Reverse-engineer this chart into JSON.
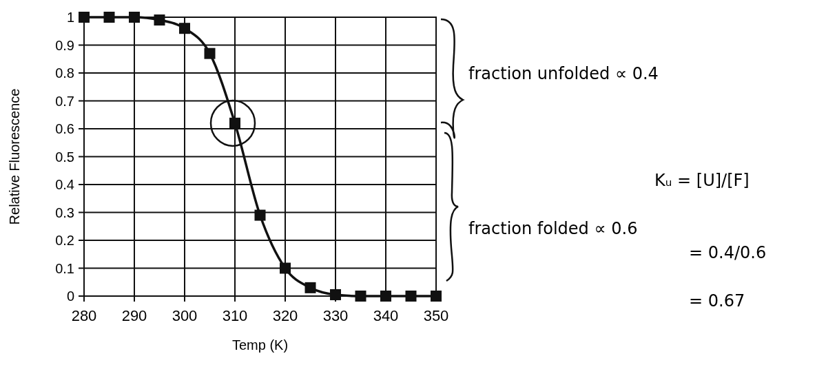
{
  "chart_data": {
    "type": "line",
    "xlabel": "Temp (K)",
    "ylabel": "Relative Fluorescence",
    "x": [
      280,
      285,
      290,
      295,
      300,
      305,
      310,
      315,
      320,
      325,
      330,
      335,
      340,
      345,
      350
    ],
    "series": [
      {
        "color": "#111111",
        "values": [
          1,
          1,
          1,
          0.99,
          0.96,
          0.87,
          0.62,
          0.29,
          0.1,
          0.03,
          0.005,
          0,
          0,
          0,
          0
        ]
      }
    ],
    "xlim": [
      280,
      350
    ],
    "xticks": [
      280,
      290,
      300,
      310,
      320,
      330,
      340,
      350
    ],
    "ylim": [
      0,
      1
    ],
    "yticks": [
      0,
      0.1,
      0.2,
      0.3,
      0.4,
      0.5,
      0.6,
      0.7,
      0.8,
      0.9,
      1
    ],
    "grid": true,
    "marker": "square",
    "line_style": "solid",
    "annotations": [
      "fraction unfolded ∝ 0.4",
      "fraction folded ∝ 0.6",
      "Kᵤ = [U]/[F]",
      "= 0.4/0.6",
      "= 0.67"
    ]
  }
}
